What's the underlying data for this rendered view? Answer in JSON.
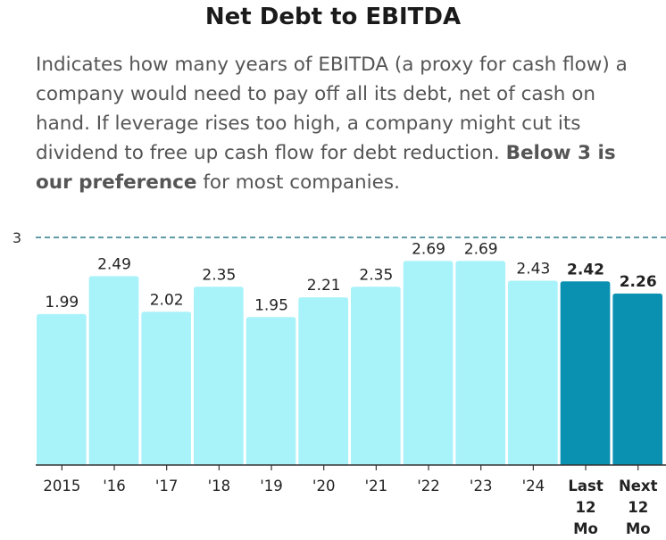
{
  "header": {
    "title": "Net Debt to EBITDA",
    "description": "Indicates how many years of EBITDA (a proxy for cash flow) a company would need to pay off all its debt, net of cash on hand. If leverage rises too high, a company might cut its dividend to free up cash flow for debt reduction.",
    "description_bold": "Below 3 is our preference",
    "description_end": "for most companies."
  },
  "chart_data": {
    "type": "bar",
    "title": "Net Debt to EBITDA",
    "categories": [
      "2015",
      "'16",
      "'17",
      "'18",
      "'19",
      "'20",
      "'21",
      "'22",
      "'23",
      "'24",
      "Last 12 Mo",
      "Next 12 Mo"
    ],
    "category_lines": [
      [
        "2015"
      ],
      [
        "'16"
      ],
      [
        "'17"
      ],
      [
        "'18"
      ],
      [
        "'19"
      ],
      [
        "'20"
      ],
      [
        "'21"
      ],
      [
        "'22"
      ],
      [
        "'23"
      ],
      [
        "'24"
      ],
      [
        "Last",
        "12",
        "Mo"
      ],
      [
        "Next",
        "12",
        "Mo"
      ]
    ],
    "values": [
      1.99,
      2.49,
      2.02,
      2.35,
      1.95,
      2.21,
      2.35,
      2.69,
      2.69,
      2.43,
      2.42,
      2.26
    ],
    "value_labels": [
      "1.99",
      "2.49",
      "2.02",
      "2.35",
      "1.95",
      "2.21",
      "2.35",
      "2.69",
      "2.69",
      "2.43",
      "2.42",
      "2.26"
    ],
    "highlighted": [
      false,
      false,
      false,
      false,
      false,
      false,
      false,
      false,
      false,
      false,
      true,
      true
    ],
    "reference_line": {
      "value": 3,
      "label": "3",
      "style": "dashed"
    },
    "ylim": [
      0,
      3
    ],
    "grid": false,
    "colors": {
      "bar": "#a8f2fa",
      "bar_highlight": "#0a90b0",
      "reference": "#2a7a8c",
      "label": "#333333",
      "axis": "#333333"
    }
  }
}
